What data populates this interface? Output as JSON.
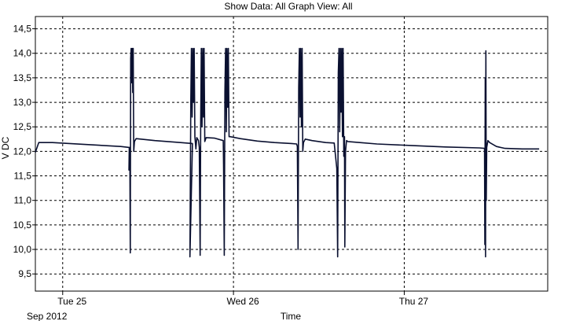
{
  "header": {
    "title": "Show Data: All   Graph View: All"
  },
  "chart_data": {
    "type": "line",
    "title": "Show Data: All   Graph View: All",
    "xlabel": "Time",
    "ylabel": "V DC",
    "x_start_label": "Sep 2012",
    "ylim": [
      9.15,
      14.75
    ],
    "xlim": [
      0,
      3.0
    ],
    "y_ticks": [
      9.5,
      10.0,
      10.5,
      11.0,
      11.5,
      12.0,
      12.5,
      13.0,
      13.5,
      14.0,
      14.5
    ],
    "y_tick_labels": [
      "9,5",
      "10,0",
      "10,5",
      "11,0",
      "11,5",
      "12,0",
      "12,5",
      "13,0",
      "13,5",
      "14,0",
      "14,5"
    ],
    "x_ticks": [
      0.16,
      1.16,
      2.16
    ],
    "x_tick_labels": [
      "Tue 25",
      "Wed 26",
      "Thu 27"
    ],
    "grid": true,
    "colors": {
      "line": "#0a1030",
      "grid": "#000000",
      "background": "#ffffff"
    },
    "series": [
      {
        "values": [
          [
            0.0,
            11.98
          ],
          [
            0.02,
            12.18
          ],
          [
            0.1,
            12.18
          ],
          [
            0.3,
            12.14
          ],
          [
            0.5,
            12.1
          ],
          [
            0.55,
            12.08
          ],
          [
            0.548,
            11.62
          ],
          [
            0.553,
            12.08
          ],
          [
            0.556,
            9.93
          ],
          [
            0.558,
            13.9
          ],
          [
            0.561,
            14.1
          ],
          [
            0.564,
            13.4
          ],
          [
            0.567,
            14.1
          ],
          [
            0.57,
            13.2
          ],
          [
            0.573,
            14.1
          ],
          [
            0.576,
            12.0
          ],
          [
            0.58,
            12.2
          ],
          [
            0.59,
            12.26
          ],
          [
            0.7,
            12.22
          ],
          [
            0.85,
            12.18
          ],
          [
            0.92,
            12.16
          ],
          [
            0.905,
            9.85
          ],
          [
            0.91,
            13.0
          ],
          [
            0.914,
            14.1
          ],
          [
            0.918,
            12.7
          ],
          [
            0.922,
            14.1
          ],
          [
            0.926,
            13.0
          ],
          [
            0.93,
            14.1
          ],
          [
            0.934,
            12.3
          ],
          [
            0.94,
            12.05
          ],
          [
            0.945,
            12.28
          ],
          [
            0.955,
            12.22
          ],
          [
            0.96,
            12.08
          ],
          [
            0.965,
            9.88
          ],
          [
            0.968,
            12.6
          ],
          [
            0.972,
            14.1
          ],
          [
            0.976,
            12.5
          ],
          [
            0.98,
            14.1
          ],
          [
            0.984,
            12.7
          ],
          [
            0.988,
            14.1
          ],
          [
            0.992,
            12.2
          ],
          [
            1.0,
            12.28
          ],
          [
            1.05,
            12.27
          ],
          [
            1.1,
            12.22
          ],
          [
            1.102,
            11.72
          ],
          [
            1.106,
            9.88
          ],
          [
            1.11,
            13.2
          ],
          [
            1.114,
            14.1
          ],
          [
            1.118,
            12.4
          ],
          [
            1.122,
            14.1
          ],
          [
            1.126,
            12.9
          ],
          [
            1.13,
            14.1
          ],
          [
            1.134,
            12.3
          ],
          [
            1.14,
            12.3
          ],
          [
            1.2,
            12.26
          ],
          [
            1.3,
            12.21
          ],
          [
            1.4,
            12.18
          ],
          [
            1.5,
            12.16
          ],
          [
            1.53,
            12.15
          ],
          [
            1.534,
            12.1
          ],
          [
            1.538,
            10.0
          ],
          [
            1.542,
            13.3
          ],
          [
            1.546,
            14.1
          ],
          [
            1.55,
            12.7
          ],
          [
            1.554,
            14.1
          ],
          [
            1.558,
            12.5
          ],
          [
            1.562,
            14.1
          ],
          [
            1.566,
            12.0
          ],
          [
            1.57,
            12.18
          ],
          [
            1.58,
            12.25
          ],
          [
            1.62,
            12.22
          ],
          [
            1.7,
            12.18
          ],
          [
            1.75,
            12.17
          ],
          [
            1.765,
            11.65
          ],
          [
            1.77,
            9.85
          ],
          [
            1.774,
            13.6
          ],
          [
            1.778,
            14.1
          ],
          [
            1.782,
            12.4
          ],
          [
            1.786,
            14.1
          ],
          [
            1.79,
            12.8
          ],
          [
            1.794,
            14.1
          ],
          [
            1.798,
            12.3
          ],
          [
            1.802,
            14.1
          ],
          [
            1.806,
            11.9
          ],
          [
            1.81,
            12.3
          ],
          [
            1.812,
            10.05
          ],
          [
            1.816,
            12.0
          ],
          [
            1.822,
            12.22
          ],
          [
            1.83,
            12.2
          ],
          [
            1.9,
            12.18
          ],
          [
            2.0,
            12.15
          ],
          [
            2.2,
            12.12
          ],
          [
            2.4,
            12.09
          ],
          [
            2.6,
            12.07
          ],
          [
            2.63,
            12.06
          ],
          [
            2.632,
            10.1
          ],
          [
            2.634,
            13.5
          ],
          [
            2.636,
            9.85
          ],
          [
            2.638,
            14.05
          ],
          [
            2.64,
            11.0
          ],
          [
            2.643,
            12.08
          ],
          [
            2.65,
            12.22
          ],
          [
            2.66,
            12.18
          ],
          [
            2.7,
            12.1
          ],
          [
            2.75,
            12.06
          ],
          [
            2.85,
            12.05
          ],
          [
            2.95,
            12.05
          ]
        ]
      }
    ]
  }
}
